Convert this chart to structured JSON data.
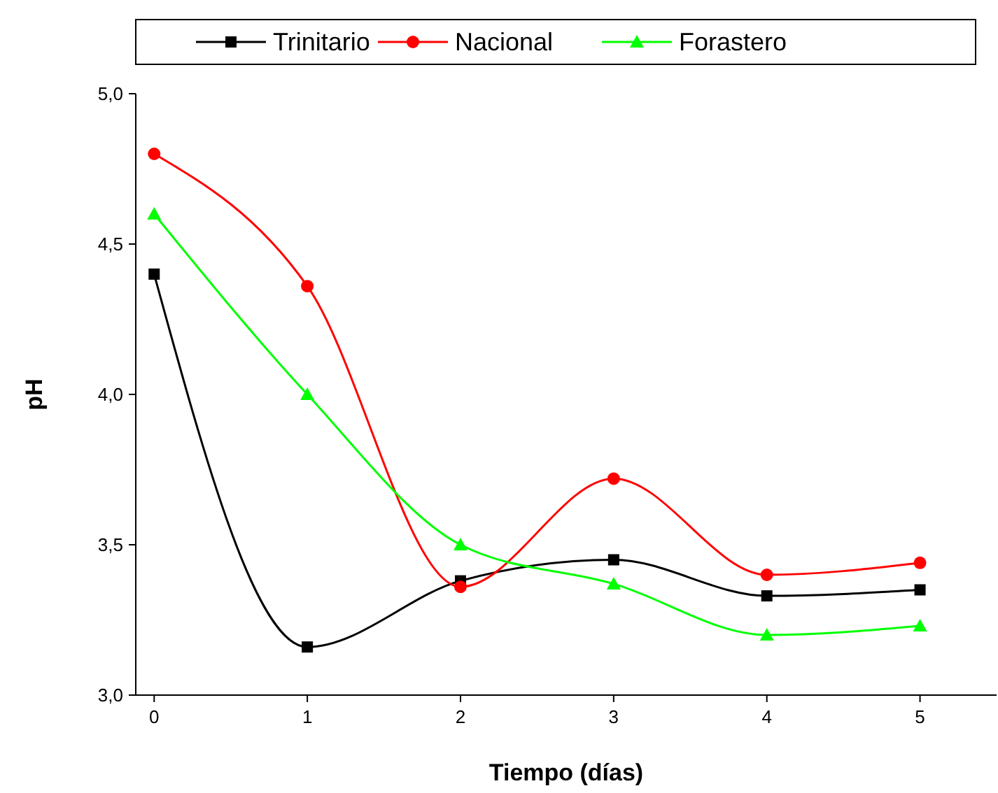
{
  "chart_data": {
    "type": "line",
    "xlabel": "Tiempo (días)",
    "ylabel": "pH",
    "x": [
      0,
      1,
      2,
      3,
      4,
      5
    ],
    "xlim": [
      -0.12,
      5.5
    ],
    "xticks": [
      0,
      1,
      2,
      3,
      4,
      5
    ],
    "ylim": [
      3,
      5
    ],
    "yticks": [
      {
        "value": 3,
        "label": "3,0"
      },
      {
        "value": 3.5,
        "label": "3,5"
      },
      {
        "value": 4,
        "label": "4,0"
      },
      {
        "value": 4.5,
        "label": "4,5"
      },
      {
        "value": 5,
        "label": "5,0"
      }
    ],
    "grid": false,
    "legend": "top",
    "line_style": "solid",
    "series": [
      {
        "name": "Trinitario",
        "color": "#000000",
        "marker": "square",
        "values": [
          4.4,
          3.16,
          3.38,
          3.45,
          3.33,
          3.35
        ]
      },
      {
        "name": "Nacional",
        "color": "#ff0000",
        "marker": "circle",
        "values": [
          4.8,
          4.36,
          3.36,
          3.72,
          3.4,
          3.44
        ]
      },
      {
        "name": "Forastero",
        "color": "#00ff00",
        "marker": "triangle",
        "values": [
          4.6,
          4.0,
          3.5,
          3.37,
          3.2,
          3.23
        ]
      }
    ]
  }
}
